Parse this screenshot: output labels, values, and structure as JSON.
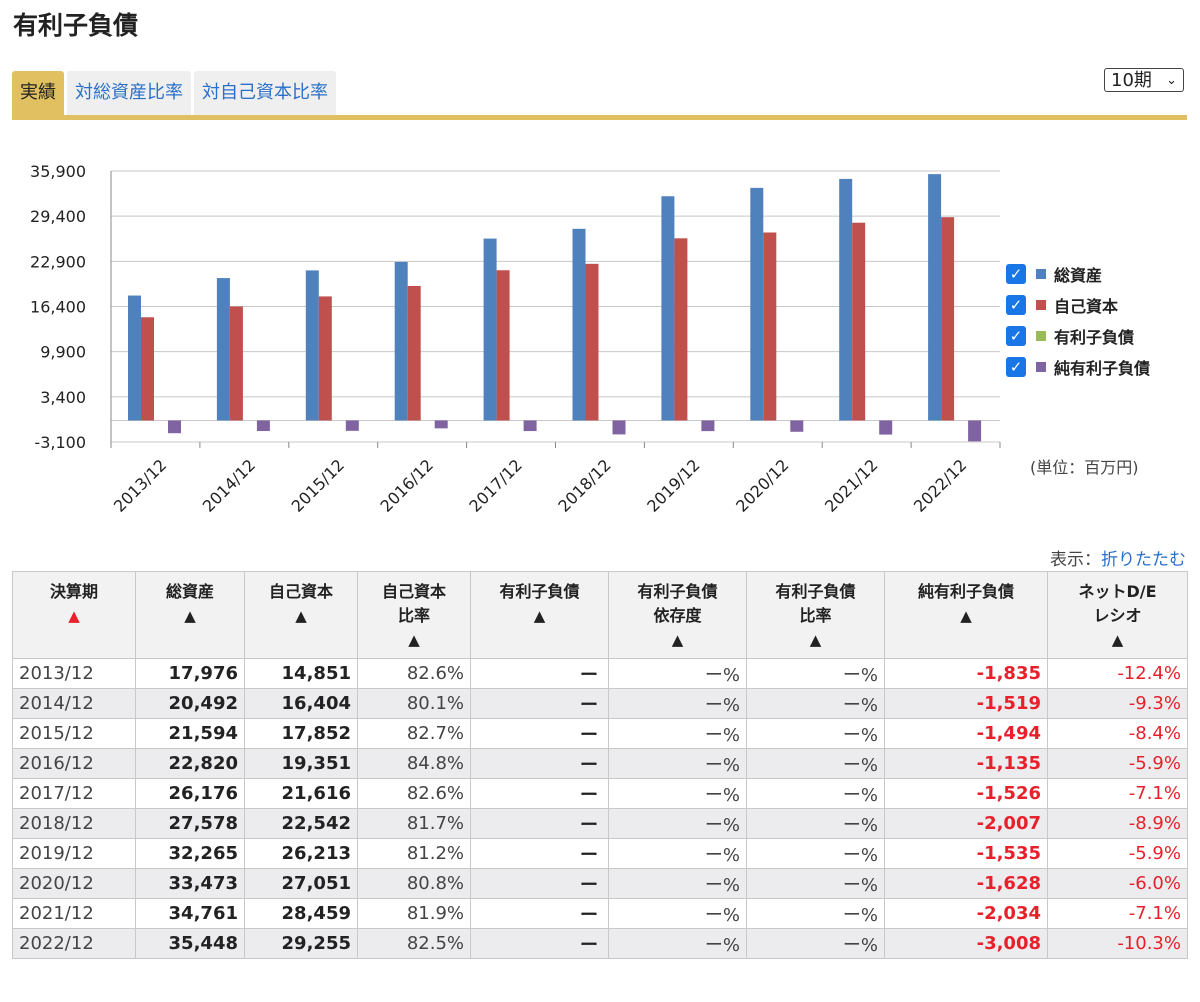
{
  "page_title": "有利子負債",
  "tabs": [
    {
      "label": "実績",
      "active": true
    },
    {
      "label": "対総資産比率",
      "active": false
    },
    {
      "label": "対自己資本比率",
      "active": false
    }
  ],
  "period_select": {
    "value": "10期"
  },
  "unit_label": "(単位：百万円)",
  "display_prefix": "表示：",
  "display_link": "折りたたむ",
  "legend": [
    {
      "label": "総資産",
      "color": "#4f81bd",
      "checked": true
    },
    {
      "label": "自己資本",
      "color": "#c0504d",
      "checked": true
    },
    {
      "label": "有利子負債",
      "color": "#9bbb59",
      "checked": true
    },
    {
      "label": "純有利子負債",
      "color": "#8064a2",
      "checked": true
    }
  ],
  "chart_data": {
    "type": "bar",
    "categories": [
      "2013/12",
      "2014/12",
      "2015/12",
      "2016/12",
      "2017/12",
      "2018/12",
      "2019/12",
      "2020/12",
      "2021/12",
      "2022/12"
    ],
    "series": [
      {
        "name": "総資産",
        "color": "#4f81bd",
        "values": [
          17976,
          20492,
          21594,
          22820,
          26176,
          27578,
          32265,
          33473,
          34761,
          35448
        ]
      },
      {
        "name": "自己資本",
        "color": "#c0504d",
        "values": [
          14851,
          16404,
          17852,
          19351,
          21616,
          22542,
          26213,
          27051,
          28459,
          29255
        ]
      },
      {
        "name": "有利子負債",
        "color": "#9bbb59",
        "values": [
          null,
          null,
          null,
          null,
          null,
          null,
          null,
          null,
          null,
          null
        ]
      },
      {
        "name": "純有利子負債",
        "color": "#8064a2",
        "values": [
          -1835,
          -1519,
          -1494,
          -1135,
          -1526,
          -2007,
          -1535,
          -1628,
          -2034,
          -3008
        ]
      }
    ],
    "y_ticks": [
      "35,900",
      "29,400",
      "22,900",
      "16,400",
      "9,900",
      "3,400",
      "-3,100"
    ],
    "ylim": [
      -3100,
      35900
    ],
    "grid": true,
    "legend_position": "right"
  },
  "table": {
    "headers": [
      {
        "label": "決算期",
        "sort": "▲",
        "sort_active": true
      },
      {
        "label": "総資産",
        "sort": "▲"
      },
      {
        "label": "自己資本",
        "sort": "▲"
      },
      {
        "label": "自己資本\n比率",
        "sort": "▲"
      },
      {
        "label": "有利子負債",
        "sort": "▲"
      },
      {
        "label": "有利子負債\n依存度",
        "sort": "▲"
      },
      {
        "label": "有利子負債\n比率",
        "sort": "▲"
      },
      {
        "label": "純有利子負債",
        "sort": "▲"
      },
      {
        "label": "ネットD/E\nレシオ",
        "sort": "▲"
      }
    ],
    "rows": [
      [
        "2013/12",
        "17,976",
        "14,851",
        "82.6%",
        "ー",
        "ー%",
        "ー%",
        "-1,835",
        "-12.4%"
      ],
      [
        "2014/12",
        "20,492",
        "16,404",
        "80.1%",
        "ー",
        "ー%",
        "ー%",
        "-1,519",
        "-9.3%"
      ],
      [
        "2015/12",
        "21,594",
        "17,852",
        "82.7%",
        "ー",
        "ー%",
        "ー%",
        "-1,494",
        "-8.4%"
      ],
      [
        "2016/12",
        "22,820",
        "19,351",
        "84.8%",
        "ー",
        "ー%",
        "ー%",
        "-1,135",
        "-5.9%"
      ],
      [
        "2017/12",
        "26,176",
        "21,616",
        "82.6%",
        "ー",
        "ー%",
        "ー%",
        "-1,526",
        "-7.1%"
      ],
      [
        "2018/12",
        "27,578",
        "22,542",
        "81.7%",
        "ー",
        "ー%",
        "ー%",
        "-2,007",
        "-8.9%"
      ],
      [
        "2019/12",
        "32,265",
        "26,213",
        "81.2%",
        "ー",
        "ー%",
        "ー%",
        "-1,535",
        "-5.9%"
      ],
      [
        "2020/12",
        "33,473",
        "27,051",
        "80.8%",
        "ー",
        "ー%",
        "ー%",
        "-1,628",
        "-6.0%"
      ],
      [
        "2021/12",
        "34,761",
        "28,459",
        "81.9%",
        "ー",
        "ー%",
        "ー%",
        "-2,034",
        "-7.1%"
      ],
      [
        "2022/12",
        "35,448",
        "29,255",
        "82.5%",
        "ー",
        "ー%",
        "ー%",
        "-3,008",
        "-10.3%"
      ]
    ]
  }
}
